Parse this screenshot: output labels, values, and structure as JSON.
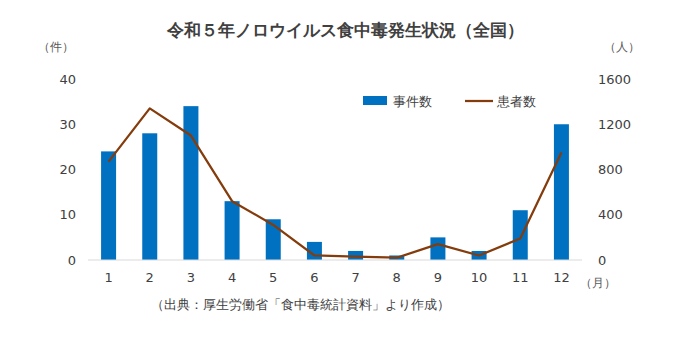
{
  "chart_data": {
    "type": "bar",
    "title": "令和５年ノロウイルス食中毒発生状況（全国）",
    "y_label": "（件）",
    "y2_label": "（人）",
    "x_label": "（月）",
    "source": "（出典：厚生労働省「食中毒統計資料」より作成）",
    "categories": [
      "1",
      "2",
      "3",
      "4",
      "5",
      "6",
      "7",
      "8",
      "9",
      "10",
      "11",
      "12"
    ],
    "series": [
      {
        "name": "事件数",
        "type": "bar",
        "color": "#0070c0",
        "values": [
          24,
          28,
          34,
          13,
          9,
          4,
          2,
          1,
          5,
          2,
          11,
          30
        ]
      },
      {
        "name": "患者数",
        "type": "line",
        "color": "#843c0c",
        "axis": "y2",
        "values": [
          870,
          1340,
          1100,
          520,
          310,
          40,
          30,
          20,
          140,
          40,
          190,
          950
        ]
      }
    ],
    "ylim": [
      0,
      40
    ],
    "yticks": [
      0,
      10,
      20,
      30,
      40
    ],
    "y2lim": [
      0,
      1600
    ],
    "y2ticks": [
      0,
      400,
      800,
      1200,
      1600
    ],
    "grid": false,
    "legend": "top-right"
  }
}
